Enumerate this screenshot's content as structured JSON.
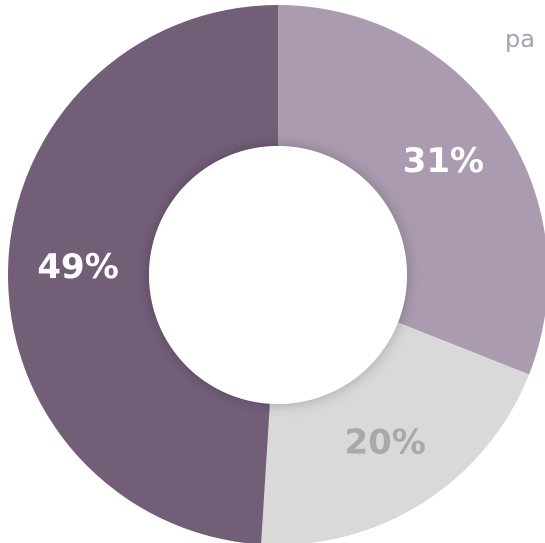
{
  "chart_data": {
    "type": "donut",
    "legend_text": "pa",
    "categories": [
      null,
      null,
      null
    ],
    "values": [
      31,
      20,
      49
    ],
    "value_labels": [
      "31%",
      "20%",
      "49%"
    ],
    "colors": [
      "#ab9bb0",
      "#d9d9d9",
      "#735e78"
    ],
    "label_colors": [
      "#ffffff",
      "#a9a9a9",
      "#ffffff"
    ]
  }
}
